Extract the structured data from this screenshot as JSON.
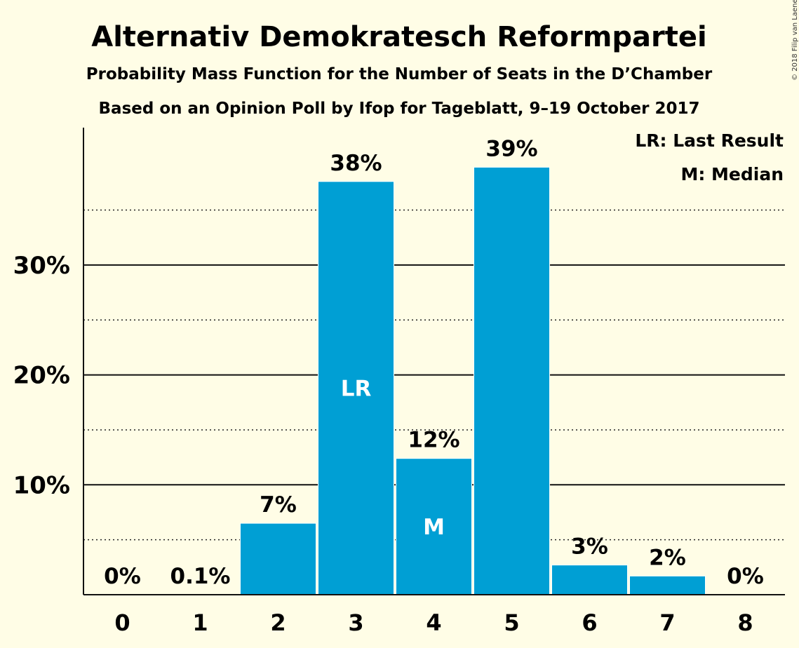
{
  "chart_data": {
    "type": "bar",
    "title": "Alternativ Demokratesch Reformpartei",
    "subtitle": "Probability Mass Function for the Number of Seats in the D’Chamber",
    "subtitle2": "Based on an Opinion Poll by Ifop for Tageblatt, 9–19 October 2017",
    "categories": [
      "0",
      "1",
      "2",
      "3",
      "4",
      "5",
      "6",
      "7",
      "8"
    ],
    "values": [
      0,
      0.1,
      6.5,
      37.6,
      12.4,
      38.9,
      2.7,
      1.7,
      0
    ],
    "value_labels": [
      "0%",
      "0.1%",
      "7%",
      "38%",
      "12%",
      "39%",
      "3%",
      "2%",
      "0%"
    ],
    "bar_annotations": [
      {
        "index": 3,
        "text": "LR"
      },
      {
        "index": 4,
        "text": "M"
      }
    ],
    "legend": [
      "LR: Last Result",
      "M: Median"
    ],
    "yticks": [
      10,
      20,
      30
    ],
    "ytick_labels": [
      "10%",
      "20%",
      "30%"
    ],
    "minor_gridlines": [
      5,
      15,
      25,
      35
    ],
    "ylim": [
      0,
      42
    ],
    "xlabel": "",
    "ylabel": "",
    "bar_color": "#009fd4",
    "copyright": "© 2018 Filip van Laenen"
  }
}
